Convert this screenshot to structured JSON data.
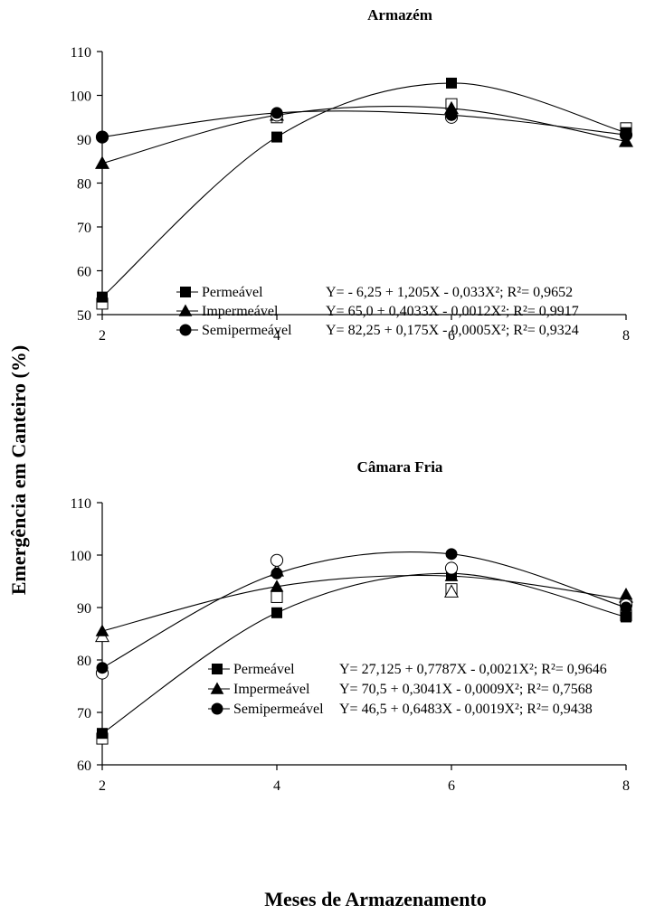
{
  "figure": {
    "ylabel": "Emergência em Canteiro (%)",
    "xlabel": "Meses de Armazenamento"
  },
  "chart_data": [
    {
      "type": "scatter",
      "title": "Armazém",
      "x": [
        2,
        4,
        6,
        8
      ],
      "xlim": [
        2,
        8
      ],
      "ylim": [
        50,
        110
      ],
      "yticks": [
        50,
        60,
        70,
        80,
        90,
        100,
        110
      ],
      "xticks": [
        2,
        4,
        6,
        8
      ],
      "fit": "quadratic",
      "series": [
        {
          "name": "Permeável",
          "marker": "square",
          "observed": [
            54,
            90.5,
            102.8,
            91.5
          ],
          "replicate": [
            52.5,
            95,
            98,
            92.5
          ],
          "equation": "Y= - 6,25 + 1,205X - 0,033X²; R²= 0,9652",
          "fit_points": [
            [
              2,
              54
            ],
            [
              4,
              90.5
            ],
            [
              6,
              102.8
            ],
            [
              8,
              91.5
            ]
          ]
        },
        {
          "name": "Impermeável",
          "marker": "triangle",
          "observed": [
            84.5,
            95.5,
            97,
            89.5
          ],
          "replicate": [
            84.5,
            95.5,
            97,
            89.5
          ],
          "equation": "Y= 65,0 + 0,4033X - 0,0012X²; R²= 0,9917",
          "fit_points": [
            [
              2,
              84.5
            ],
            [
              4,
              95.5
            ],
            [
              6,
              97
            ],
            [
              8,
              89.5
            ]
          ]
        },
        {
          "name": "Semipermeável",
          "marker": "circle",
          "observed": [
            90.5,
            96,
            95.5,
            91
          ],
          "replicate": [
            90.5,
            95.5,
            95,
            91
          ],
          "equation": "Y= 82,25 + 0,175X - 0,0005X²; R²= 0,9324",
          "fit_points": [
            [
              2,
              90.5
            ],
            [
              4,
              96
            ],
            [
              6,
              95.5
            ],
            [
              8,
              91
            ]
          ]
        }
      ]
    },
    {
      "type": "scatter",
      "title": "Câmara Fria",
      "x": [
        2,
        4,
        6,
        8
      ],
      "xlim": [
        2,
        8
      ],
      "ylim": [
        60,
        110
      ],
      "yticks": [
        60,
        70,
        80,
        90,
        100,
        110
      ],
      "xticks": [
        2,
        4,
        6,
        8
      ],
      "fit": "quadratic",
      "series": [
        {
          "name": "Permeável",
          "marker": "square",
          "observed": [
            66,
            89,
            96.5,
            88.2
          ],
          "replicate": [
            65,
            92,
            93.5,
            88.5
          ],
          "equation": "Y= 27,125 + 0,7787X - 0,0021X²; R²= 0,9646",
          "fit_points": [
            [
              2,
              66
            ],
            [
              4,
              89
            ],
            [
              6,
              96.5
            ],
            [
              8,
              88.2
            ]
          ]
        },
        {
          "name": "Impermeável",
          "marker": "triangle",
          "observed": [
            85.5,
            94,
            96,
            92.5
          ],
          "replicate": [
            84.5,
            97,
            93,
            92
          ],
          "equation": "Y= 70,5 + 0,3041X - 0,0009X²; R²= 0,7568",
          "fit_points": [
            [
              2,
              85.5
            ],
            [
              4,
              94
            ],
            [
              6,
              96
            ],
            [
              8,
              91.5
            ]
          ]
        },
        {
          "name": "Semipermeável",
          "marker": "circle",
          "observed": [
            78.5,
            96.5,
            100.2,
            90
          ],
          "replicate": [
            77.5,
            99,
            97.5,
            90.5
          ],
          "equation": "Y= 46,5 + 0,6483X - 0,0019X²; R²= 0,9438",
          "fit_points": [
            [
              2,
              78.5
            ],
            [
              4,
              96.5
            ],
            [
              6,
              100.2
            ],
            [
              8,
              90
            ]
          ]
        }
      ]
    }
  ]
}
